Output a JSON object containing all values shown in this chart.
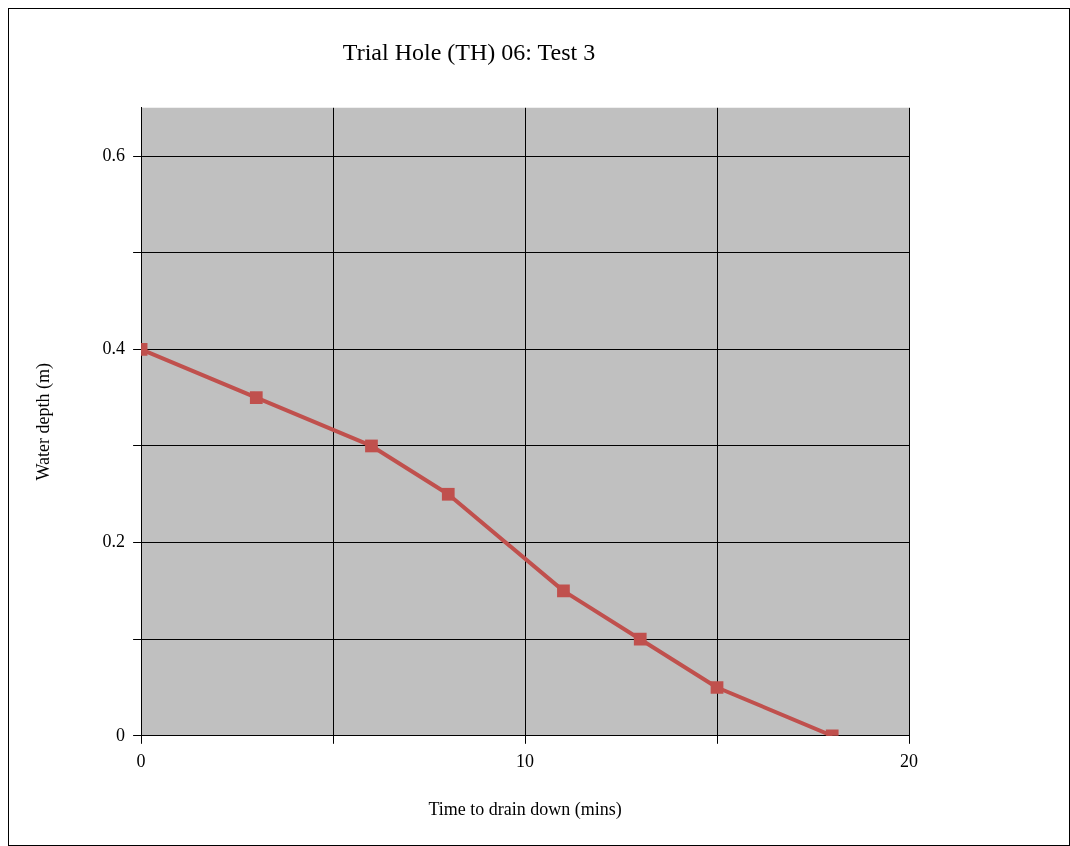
{
  "chart_data": {
    "type": "line",
    "title": "Trial Hole (TH) 06: Test 3",
    "xlabel": "Time to drain down (mins)",
    "ylabel": "Water depth (m)",
    "x": [
      0,
      3,
      6,
      8,
      11,
      13,
      15,
      18
    ],
    "series": [
      {
        "color": "#c0504d",
        "values": [
          0.4,
          0.35,
          0.3,
          0.25,
          0.15,
          0.1,
          0.05,
          0
        ]
      }
    ],
    "xlim": [
      0,
      20
    ],
    "xticks": [
      0,
      {
        "value": 5,
        "label": null
      },
      10,
      {
        "value": 15,
        "label": null
      },
      20
    ],
    "ylim": [
      0,
      0.65
    ],
    "yticks": [
      0,
      {
        "value": 0.1,
        "label": null
      },
      0.2,
      {
        "value": 0.3,
        "label": null
      },
      0.4,
      {
        "value": 0.5,
        "label": null
      },
      0.6
    ],
    "grid": true,
    "marker": "square"
  }
}
